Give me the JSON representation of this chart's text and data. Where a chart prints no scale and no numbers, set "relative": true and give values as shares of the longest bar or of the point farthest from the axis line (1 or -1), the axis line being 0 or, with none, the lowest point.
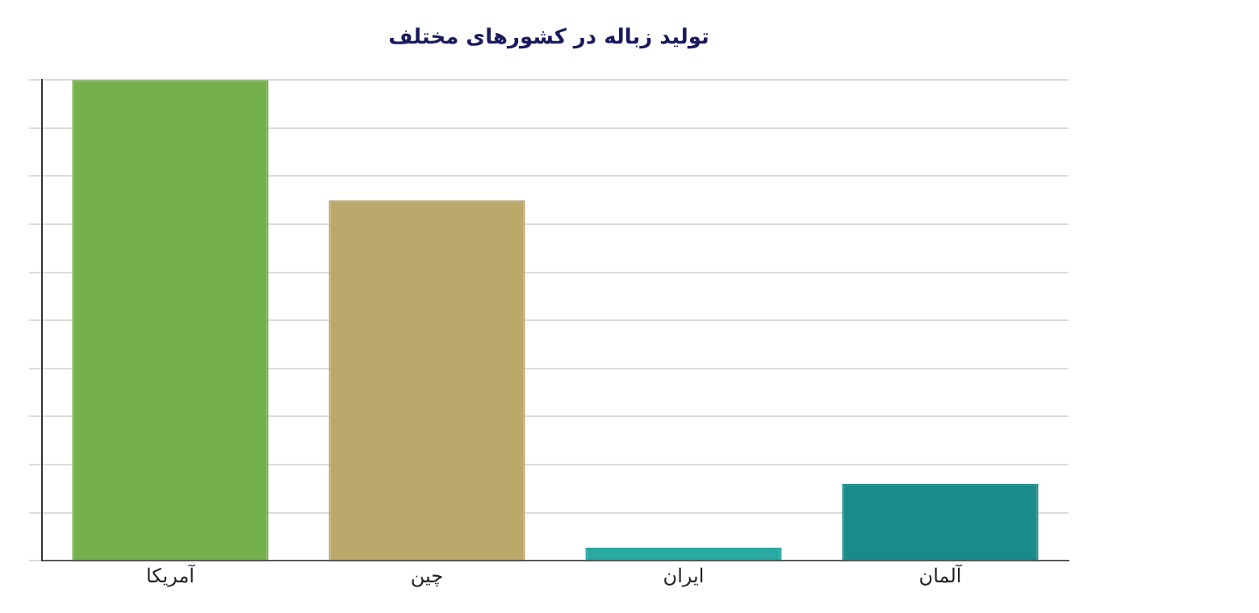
{
  "chart_data": {
    "type": "bar",
    "title": "تولید زباله در کشورهای مختلف",
    "relative": true,
    "grid": "y",
    "categories": [
      "آمریکا",
      "چین",
      "ایران",
      "آلمان"
    ],
    "values": [
      1,
      0.75,
      0.027,
      0.16
    ],
    "colors": [
      "#74b04c",
      "#bba86a",
      "#2aa8a2",
      "#1b8a8a"
    ]
  }
}
